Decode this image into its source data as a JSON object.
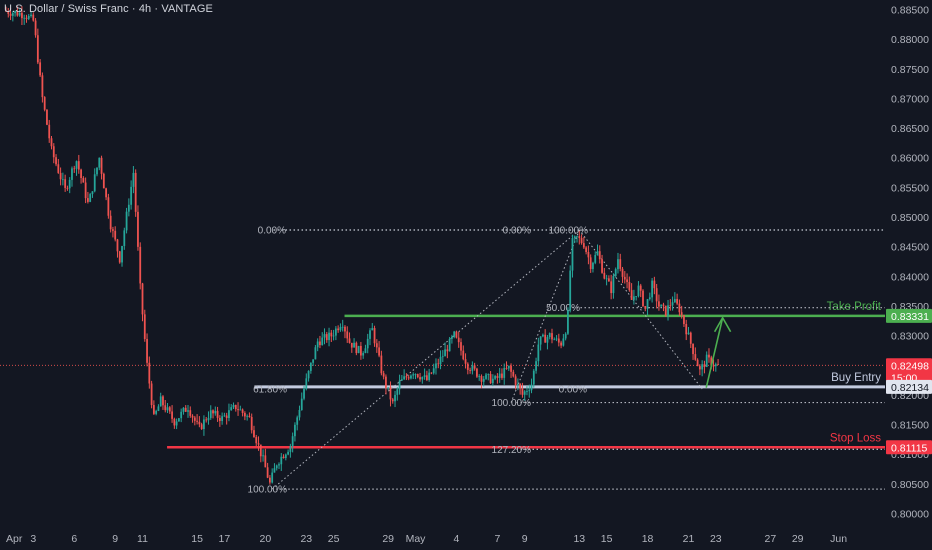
{
  "header": {
    "symbol_title": "U.S. Dollar / Swiss Franc · 4h · VANTAGE"
  },
  "colors": {
    "background": "#131722",
    "up": "#26a69a",
    "down": "#ef5350",
    "take_profit": "#4caf50",
    "stop_loss": "#f23645",
    "buy_entry": "#c3cbe0",
    "axis_text": "#b2b5be",
    "current_price_tag": "#f23645",
    "fib_dotted": "#b2b5be",
    "fib_top_line": "#c9cfd9"
  },
  "chart_data": {
    "type": "candlestick",
    "timeframe": "4h",
    "y_axis": {
      "ylim": [
        0.7972,
        0.8866
      ],
      "tick_labels": [
        "0.88500",
        "0.88000",
        "0.87500",
        "0.87000",
        "0.86500",
        "0.86000",
        "0.85500",
        "0.85000",
        "0.84500",
        "0.84000",
        "0.83500",
        "0.83000",
        "0.82500",
        "0.82000",
        "0.81500",
        "0.81000",
        "0.80500",
        "0.80000"
      ],
      "tick_values": [
        0.885,
        0.88,
        0.875,
        0.87,
        0.865,
        0.86,
        0.855,
        0.85,
        0.845,
        0.84,
        0.835,
        0.83,
        0.825,
        0.82,
        0.815,
        0.81,
        0.805,
        0.8
      ]
    },
    "x_axis": {
      "tick_labels": [
        "Apr",
        "3",
        "6",
        "9",
        "11",
        "15",
        "17",
        "20",
        "23",
        "25",
        "29",
        "May",
        "4",
        "7",
        "9",
        "13",
        "15",
        "18",
        "21",
        "23",
        "27",
        "29",
        "Jun"
      ],
      "tick_days": [
        0,
        2,
        5,
        8,
        10,
        14,
        16,
        19,
        22,
        24,
        28,
        30,
        33,
        36,
        38,
        42,
        44,
        47,
        50,
        52,
        56,
        58,
        61
      ]
    },
    "price_path": [
      [
        0,
        0.8848
      ],
      [
        1.5,
        0.8842
      ],
      [
        2.2,
        0.883
      ],
      [
        2.8,
        0.8705
      ],
      [
        3.5,
        0.8612
      ],
      [
        4.5,
        0.8545
      ],
      [
        5.3,
        0.8598
      ],
      [
        6.2,
        0.852
      ],
      [
        7,
        0.86
      ],
      [
        7.8,
        0.849
      ],
      [
        8.5,
        0.843
      ],
      [
        9.5,
        0.8575
      ],
      [
        10,
        0.838
      ],
      [
        10.5,
        0.825
      ],
      [
        11,
        0.816
      ],
      [
        11.5,
        0.819
      ],
      [
        12.5,
        0.8155
      ],
      [
        13.5,
        0.818
      ],
      [
        14.3,
        0.8142
      ],
      [
        15.1,
        0.817
      ],
      [
        16,
        0.816
      ],
      [
        17,
        0.818
      ],
      [
        18,
        0.816
      ],
      [
        19,
        0.809
      ],
      [
        19.5,
        0.805
      ],
      [
        20,
        0.8085
      ],
      [
        21,
        0.8115
      ],
      [
        22,
        0.821
      ],
      [
        23,
        0.829
      ],
      [
        24,
        0.83
      ],
      [
        24.8,
        0.8325
      ],
      [
        25.3,
        0.829
      ],
      [
        26.2,
        0.827
      ],
      [
        27,
        0.831
      ],
      [
        27.8,
        0.8228
      ],
      [
        28.5,
        0.8185
      ],
      [
        29,
        0.822
      ],
      [
        30,
        0.824
      ],
      [
        31,
        0.8225
      ],
      [
        32,
        0.826
      ],
      [
        33,
        0.83
      ],
      [
        34,
        0.825
      ],
      [
        35,
        0.823
      ],
      [
        36,
        0.8225
      ],
      [
        37,
        0.8245
      ],
      [
        38,
        0.82
      ],
      [
        38.7,
        0.822
      ],
      [
        39.2,
        0.829
      ],
      [
        40,
        0.83
      ],
      [
        40.8,
        0.8285
      ],
      [
        41.3,
        0.832
      ],
      [
        41.6,
        0.8455
      ],
      [
        42,
        0.8465
      ],
      [
        42.5,
        0.8455
      ],
      [
        43,
        0.842
      ],
      [
        43.5,
        0.844
      ],
      [
        44,
        0.84
      ],
      [
        44.5,
        0.8378
      ],
      [
        45,
        0.843
      ],
      [
        45.5,
        0.8395
      ],
      [
        46,
        0.836
      ],
      [
        46.5,
        0.838
      ],
      [
        47,
        0.8345
      ],
      [
        47.5,
        0.8385
      ],
      [
        48,
        0.835
      ],
      [
        48.5,
        0.834
      ],
      [
        49,
        0.836
      ],
      [
        49.5,
        0.8345
      ],
      [
        50,
        0.831
      ],
      [
        50.5,
        0.8275
      ],
      [
        51,
        0.824
      ],
      [
        51.5,
        0.826
      ],
      [
        52.2,
        0.8249
      ]
    ],
    "levels": [
      {
        "label": "Take Profit",
        "value": 0.83331,
        "tag": "0.83331",
        "style": "solid"
      },
      {
        "label": "Buy Entry",
        "value": 0.82134,
        "tag": "0.82134",
        "style": "solid"
      },
      {
        "label": "Stop Loss",
        "value": 0.81115,
        "tag": "0.81115",
        "style": "solid"
      }
    ],
    "current_price": {
      "value": 0.82498,
      "tag": "0.82498",
      "countdown": "15:00"
    },
    "fib_retracements": [
      {
        "from_day": 19.5,
        "to_day": 42,
        "low": 0.8041,
        "high": 0.8478,
        "levels": [
          {
            "label": "0.00%",
            "value": 0.8478
          },
          {
            "label": "61.80%",
            "value": 0.821
          },
          {
            "label": "100.00%",
            "value": 0.8041
          }
        ]
      },
      {
        "from_day": 37,
        "to_day": 42,
        "low": 0.8187,
        "high": 0.8478,
        "levels": [
          {
            "label": "0.00%",
            "value": 0.8478
          },
          {
            "label": "50.00%",
            "value": 0.8347
          },
          {
            "label": "100.00%",
            "value": 0.8187
          },
          {
            "label": "127.20%",
            "value": 0.8108
          }
        ]
      },
      {
        "from_day": 42,
        "to_day": 51,
        "low": 0.821,
        "high": 0.8478,
        "levels": [
          {
            "label": "100.00%",
            "value": 0.8478
          },
          {
            "label": "0.00%",
            "value": 0.821
          }
        ]
      }
    ],
    "projection_arrow": {
      "from_day": 51.3,
      "from_value": 0.8212,
      "to_day": 52.5,
      "to_value": 0.833
    }
  }
}
